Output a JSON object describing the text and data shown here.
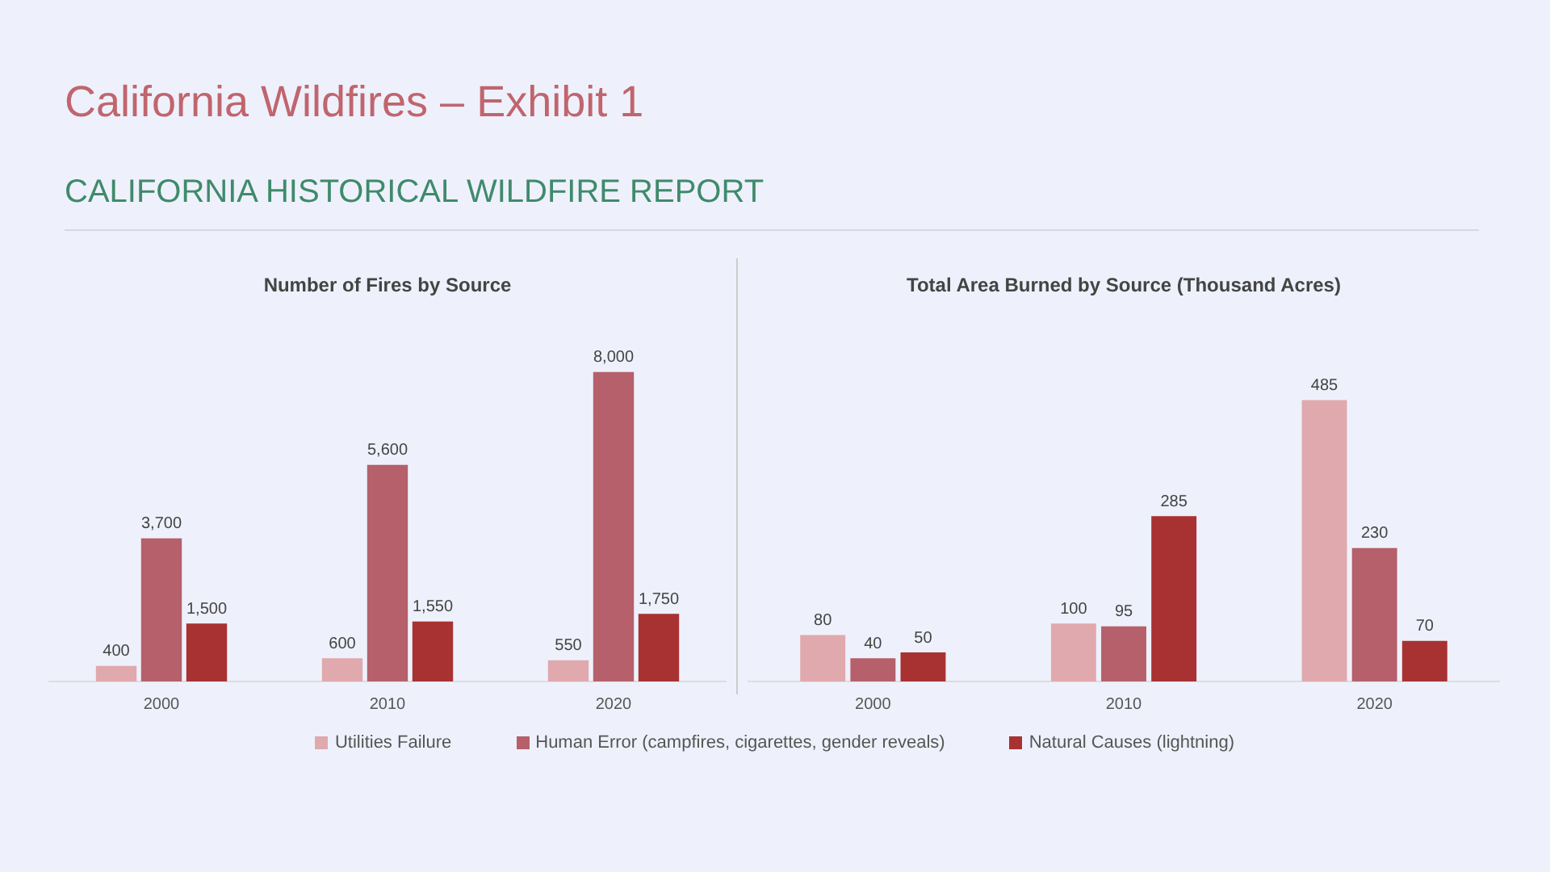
{
  "chart_data": [
    {
      "type": "bar",
      "title": "Number of Fires by Source",
      "annotations": [
        "California Wildfires – Exhibit 1",
        "CALIFORNIA HISTORICAL WILDFIRE REPORT"
      ],
      "categories": [
        "2000",
        "2010",
        "2020"
      ],
      "legend": "bottom",
      "tick_labels": "x",
      "grid": false,
      "series": [
        {
          "name": "Utilities Failure",
          "color": "#e0a9ae",
          "values": [
            400,
            600,
            550
          ],
          "value_labels": [
            "400",
            "600",
            "550"
          ]
        },
        {
          "name": "Human Error (campfires, cigarettes, gender reveals)",
          "color": "#b5606a",
          "values": [
            3700,
            5600,
            8000
          ],
          "value_labels": [
            "3,700",
            "5,600",
            "8,000"
          ]
        },
        {
          "name": "Natural Causes (lightning)",
          "color": "#a83232",
          "values": [
            1500,
            1550,
            1750
          ],
          "value_labels": [
            "1,500",
            "1,550",
            "1,750"
          ]
        }
      ]
    },
    {
      "type": "bar",
      "title": "Total Area Burned by Source (Thousand Acres)",
      "categories": [
        "2000",
        "2010",
        "2020"
      ],
      "data_labels": true,
      "tick_labels": "x",
      "grid": false,
      "series": [
        {
          "color": "#e0a9ae",
          "values": [
            80,
            100,
            485
          ]
        },
        {
          "color": "#b5606a",
          "values": [
            40,
            95,
            230
          ]
        },
        {
          "color": "#a83232",
          "values": [
            50,
            285,
            70
          ]
        }
      ]
    }
  ]
}
